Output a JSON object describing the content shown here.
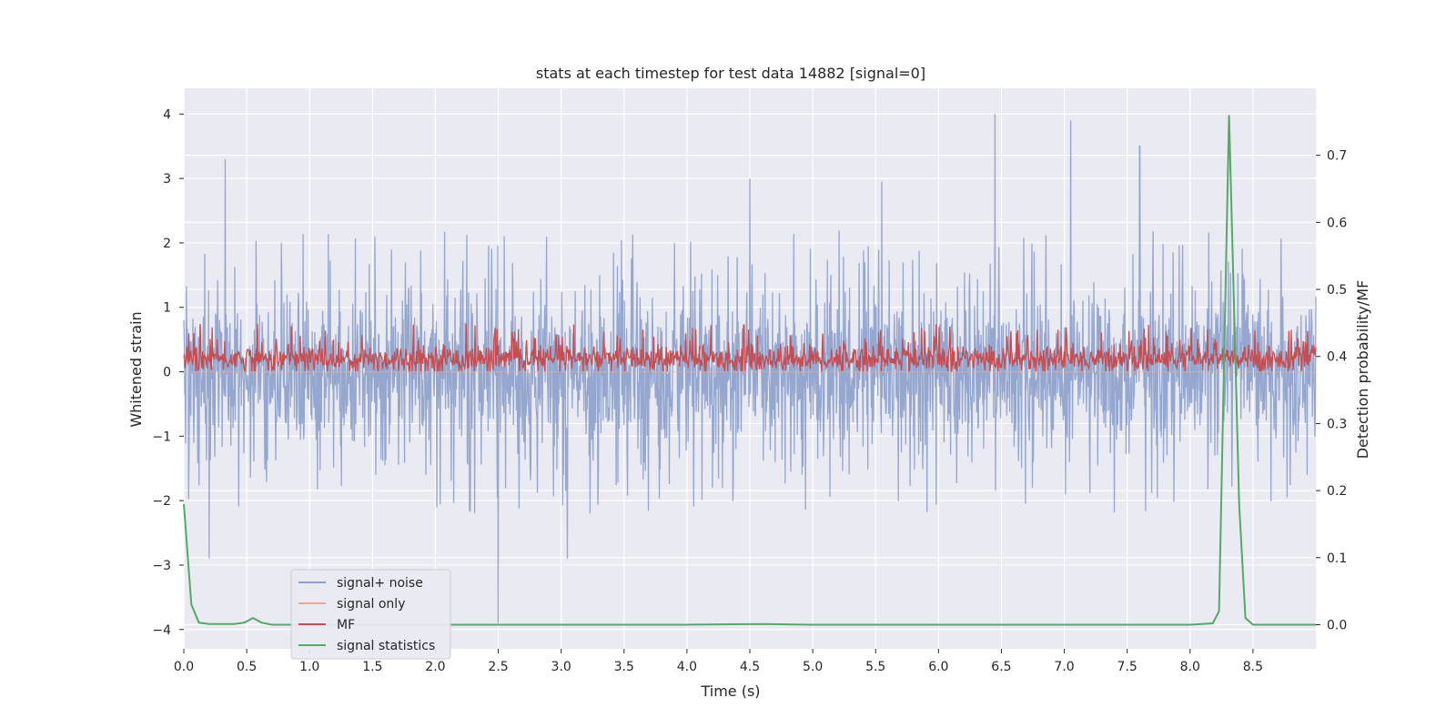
{
  "chart_data": {
    "type": "line",
    "title": "stats at each timestep for test data 14882 [signal=0]",
    "xlabel": "Time (s)",
    "ylabel": "Whitened strain",
    "y2label": "Detection probability/MF",
    "xlim": [
      0.0,
      9.0
    ],
    "ylim": [
      -4.3,
      4.4
    ],
    "y2lim": [
      -0.036,
      0.8
    ],
    "xticks": [
      0.0,
      0.5,
      1.0,
      1.5,
      2.0,
      2.5,
      3.0,
      3.5,
      4.0,
      4.5,
      5.0,
      5.5,
      6.0,
      6.5,
      7.0,
      7.5,
      8.0,
      8.5
    ],
    "xtick_labels": [
      "0.0",
      "0.5",
      "1.0",
      "1.5",
      "2.0",
      "2.5",
      "3.0",
      "3.5",
      "4.0",
      "4.5",
      "5.0",
      "5.5",
      "6.0",
      "6.5",
      "7.0",
      "7.5",
      "8.0",
      "8.5"
    ],
    "yticks": [
      4,
      3,
      2,
      1,
      0,
      -1,
      -2,
      -3,
      -4
    ],
    "ytick_labels": [
      "4",
      "3",
      "2",
      "1",
      "0",
      "−1",
      "−2",
      "−3",
      "−4"
    ],
    "y2ticks": [
      0.7,
      0.6,
      0.5,
      0.4,
      0.3,
      0.2,
      0.1,
      0.0
    ],
    "y2tick_labels": [
      "0.7",
      "0.6",
      "0.5",
      "0.4",
      "0.3",
      "0.2",
      "0.1",
      "0.0"
    ],
    "legend_position": "lower-left",
    "series": [
      {
        "name": "signal+ noise",
        "axis": "left",
        "color": "#8da0cb",
        "style": "dense noise, envelope approx -2 to +2, peaks to ~4.0 at t=6.45 and ~3.9 at t=2.5 (down)",
        "peaks": [
          {
            "t": 0.33,
            "v": 3.3
          },
          {
            "t": 6.45,
            "v": 4.0
          },
          {
            "t": 7.05,
            "v": 3.9
          },
          {
            "t": 7.6,
            "v": 3.5
          },
          {
            "t": 4.5,
            "v": 3.0
          },
          {
            "t": 5.55,
            "v": 2.95
          },
          {
            "t": 2.5,
            "v": -3.9
          },
          {
            "t": 0.2,
            "v": -2.9
          },
          {
            "t": 3.05,
            "v": -2.9
          }
        ]
      },
      {
        "name": "signal only",
        "axis": "left",
        "color": "#f4a582",
        "values_note": "flat at 0 (no signal)"
      },
      {
        "name": "MF",
        "axis": "left",
        "color": "#c44e52",
        "style": "noise band approx 0.0 to 0.7 around 0.2"
      },
      {
        "name": "signal statistics",
        "axis": "right",
        "color": "#55a868",
        "x": [
          0.0,
          0.06,
          0.12,
          0.2,
          0.3,
          0.4,
          0.48,
          0.55,
          0.62,
          0.7,
          1.0,
          2.0,
          3.0,
          4.0,
          4.6,
          5.0,
          6.0,
          7.0,
          8.0,
          8.18,
          8.23,
          8.31,
          8.39,
          8.44,
          8.5,
          8.6,
          9.0
        ],
        "values": [
          0.18,
          0.03,
          0.003,
          0.001,
          0.001,
          0.001,
          0.003,
          0.01,
          0.003,
          0.0,
          0.0,
          0.0,
          0.0,
          0.0,
          0.001,
          0.0,
          0.0,
          0.0,
          0.0,
          0.002,
          0.02,
          0.76,
          0.18,
          0.01,
          0.0,
          0.0,
          0.0
        ]
      }
    ]
  }
}
